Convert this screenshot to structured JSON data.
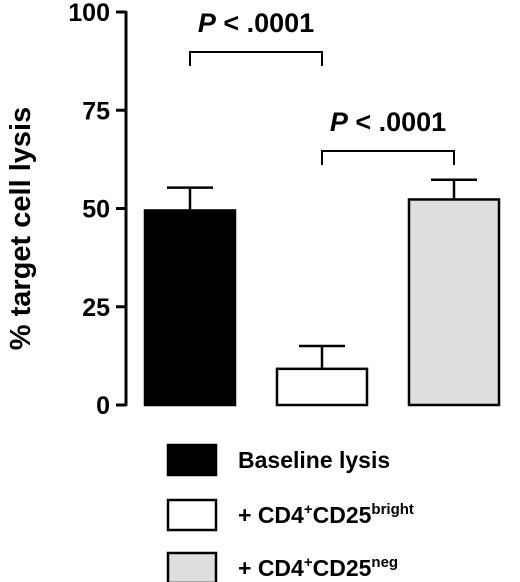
{
  "chart_data": {
    "type": "bar",
    "categories": [
      "Baseline lysis",
      "+ CD4+CD25bright",
      "+ CD4+CD25neg"
    ],
    "values": [
      49.5,
      9.2,
      52.3
    ],
    "errors": [
      5.8,
      5.8,
      5.0
    ],
    "ylabel": "% target cell lysis",
    "ylim": [
      0,
      100
    ],
    "yticks": [
      0,
      25,
      50,
      75,
      100
    ],
    "grid": false,
    "legend_position": "bottom",
    "colors": [
      "#000000",
      "#ffffff",
      "#dedede"
    ],
    "comparisons": [
      {
        "from": 0,
        "to": 1,
        "label_italic": "P",
        "label_rest": " < .0001"
      },
      {
        "from": 1,
        "to": 2,
        "label_italic": "P",
        "label_rest": " < .0001"
      }
    ],
    "legend": [
      {
        "main": "Baseline lysis",
        "sup": "",
        "mid": "",
        "sup2": ""
      },
      {
        "main": "+ CD4",
        "sup": "+",
        "mid": "CD25",
        "sup2": "bright"
      },
      {
        "main": "+ CD4",
        "sup": "+",
        "mid": "CD25",
        "sup2": "neg"
      }
    ]
  }
}
